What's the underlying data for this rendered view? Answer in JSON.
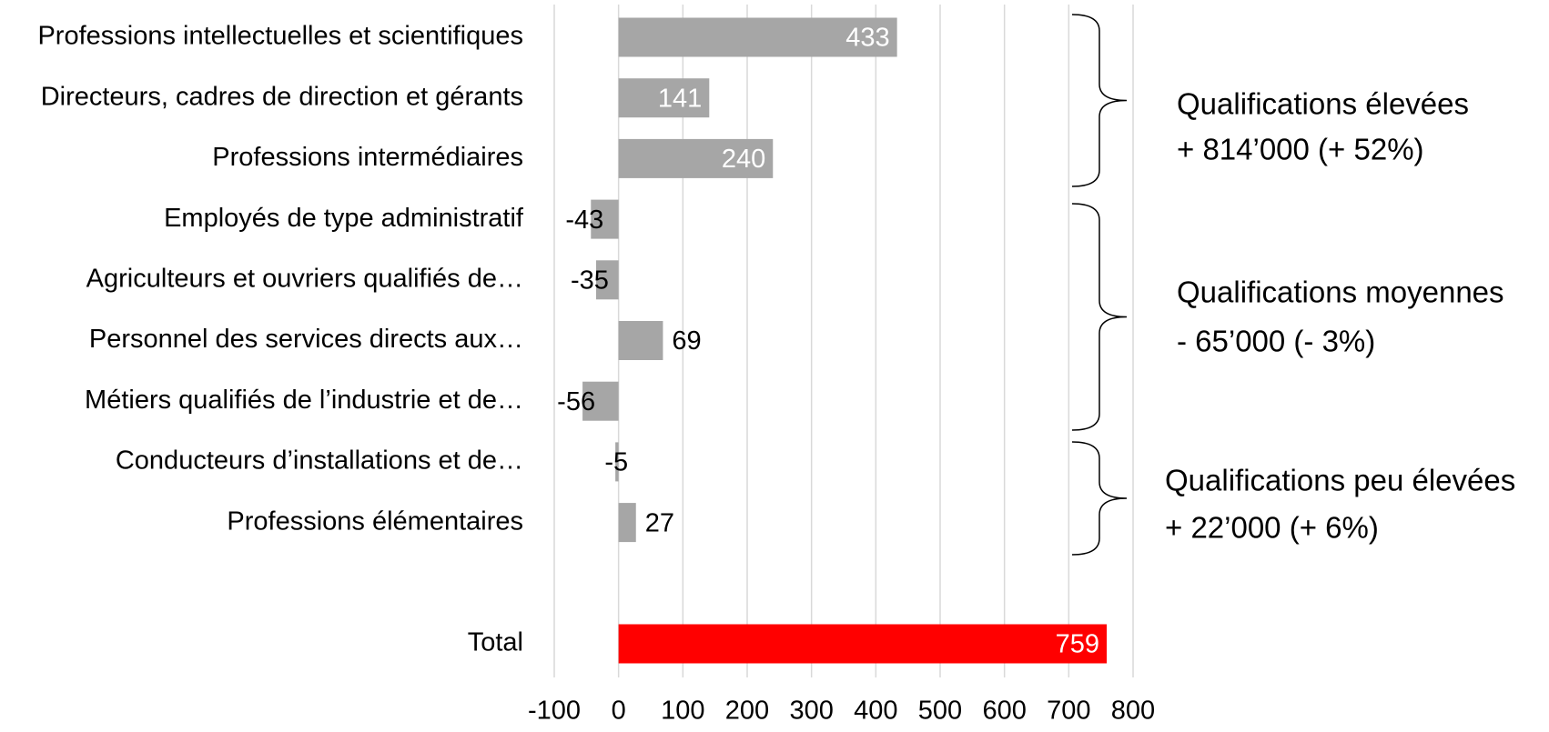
{
  "chart_data": {
    "type": "bar",
    "orientation": "horizontal",
    "categories": [
      "Professions intellectuelles et scientifiques",
      "Directeurs, cadres de direction et gérants",
      "Professions intermédiaires",
      "Employés de type administratif",
      "Agriculteurs et ouvriers qualifiés de…",
      "Personnel des services directs aux…",
      "Métiers qualifiés de l’industrie et de…",
      "Conducteurs d’installations et de…",
      "Professions élémentaires",
      null,
      "Total"
    ],
    "values": [
      433,
      141,
      240,
      -43,
      -35,
      69,
      -56,
      -5,
      27,
      null,
      759
    ],
    "colors": [
      "#a6a6a6",
      "#a6a6a6",
      "#a6a6a6",
      "#a6a6a6",
      "#a6a6a6",
      "#a6a6a6",
      "#a6a6a6",
      "#a6a6a6",
      "#a6a6a6",
      null,
      "#ff0000"
    ],
    "xlim": [
      -100,
      800
    ],
    "xticks": [
      -100,
      0,
      100,
      200,
      300,
      400,
      500,
      600,
      700,
      800
    ],
    "grid": true,
    "annotations": [
      {
        "lines": [
          "Qualifications élevées",
          "+ 814’000  (+ 52%)"
        ]
      },
      {
        "lines": [
          "Qualifications moyennes",
          "- 65’000  (- 3%)"
        ]
      },
      {
        "lines": [
          "Qualifications peu élevées",
          "+ 22’000  (+ 6%)"
        ]
      }
    ]
  }
}
